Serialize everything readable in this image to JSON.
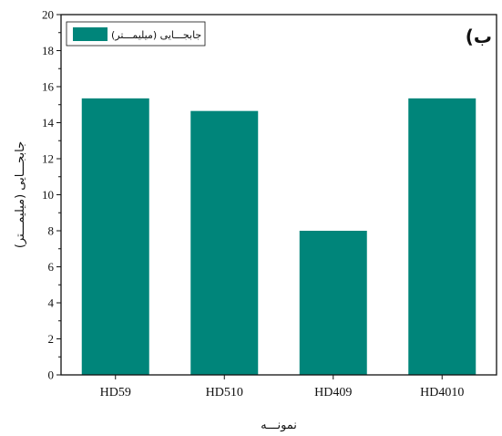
{
  "chart_data": {
    "type": "bar",
    "categories": [
      "HD59",
      "HD510",
      "HD409",
      "HD4010"
    ],
    "series": [
      {
        "name": "جابجـــایی (میلیمـــتر)",
        "values": [
          15.35,
          14.65,
          8.0,
          15.35
        ]
      }
    ],
    "xlabel": "نمونـــه",
    "ylabel": "جابجـــایی (میلیمـــتر)",
    "ylim": [
      0,
      20
    ],
    "yticks": [
      0,
      2,
      4,
      6,
      8,
      10,
      12,
      14,
      16,
      18,
      20
    ],
    "panel_label": "(ب",
    "legend_position": "top-left",
    "grid": false,
    "bar_color": "#00857a"
  }
}
